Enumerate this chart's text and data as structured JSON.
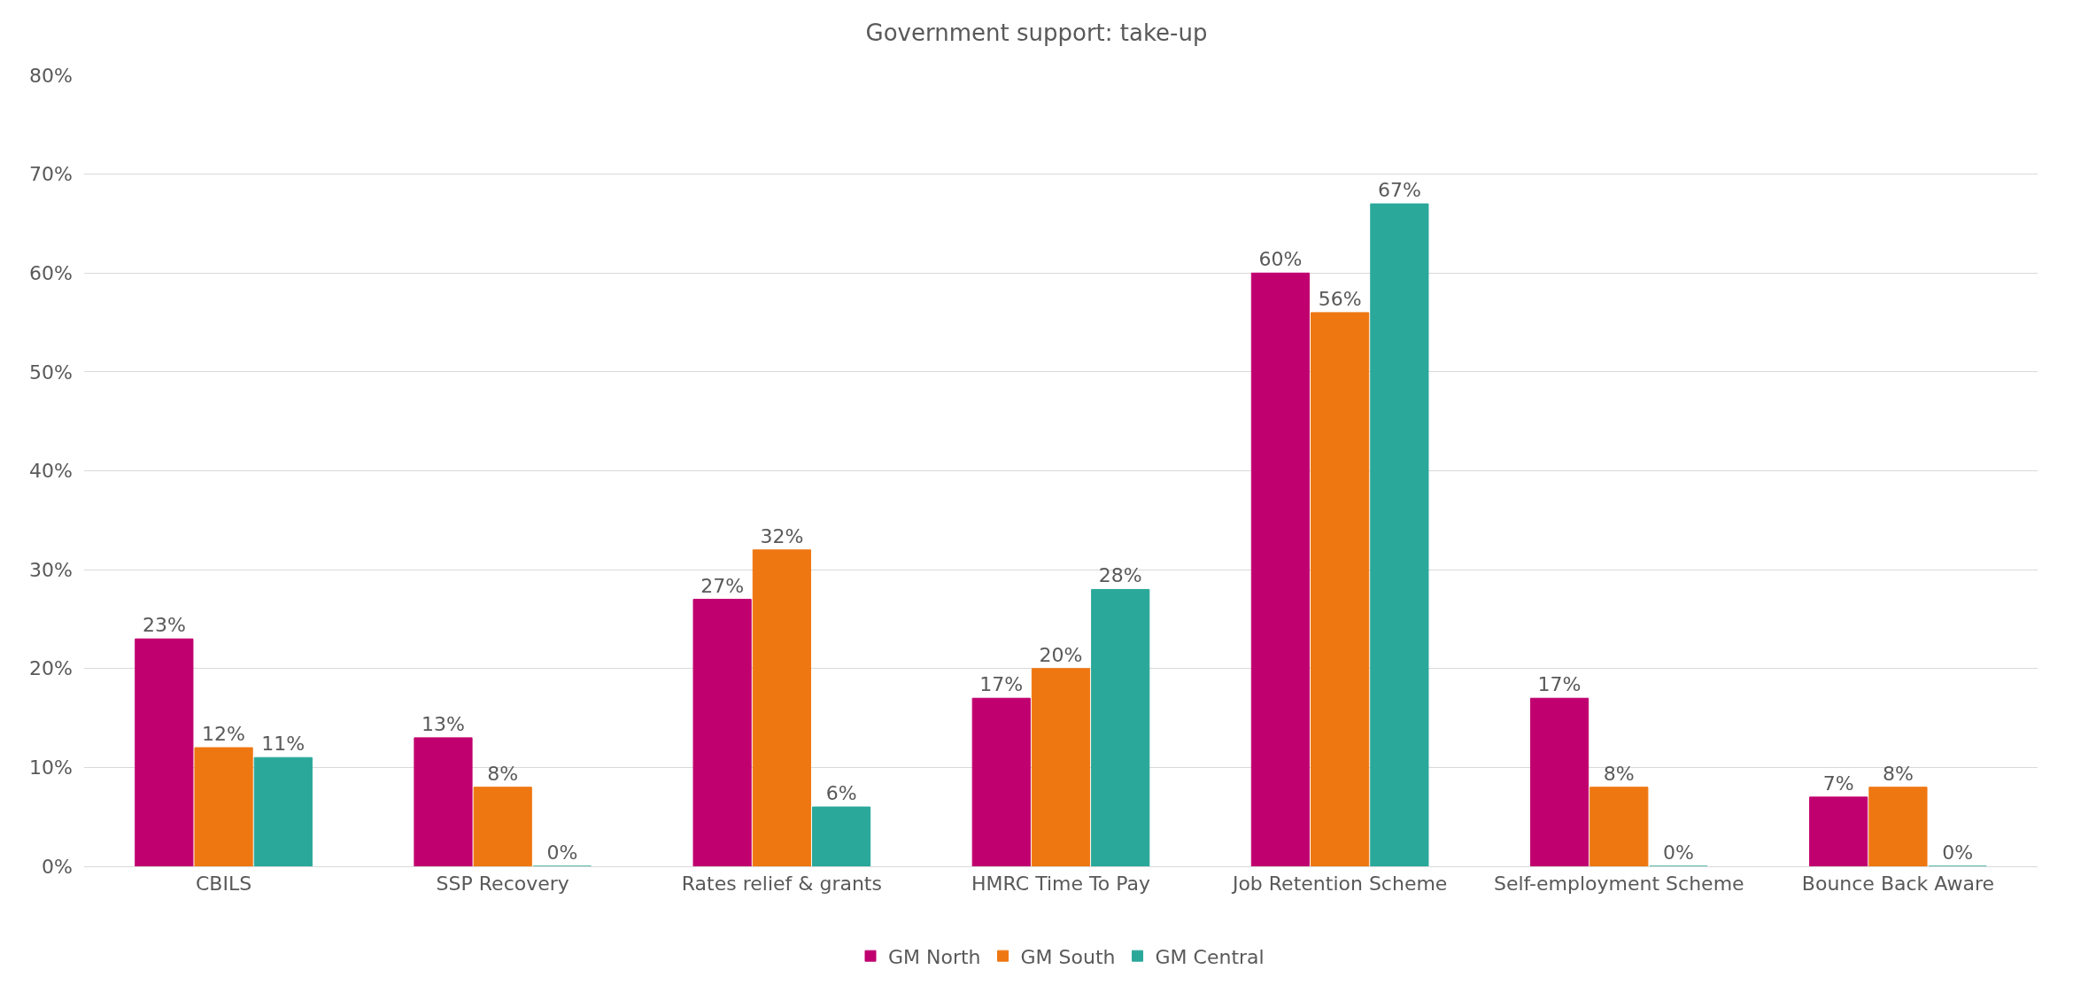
{
  "chart_data": {
    "type": "bar",
    "title": "Government support: take-up",
    "categories": [
      "CBILS",
      "SSP Recovery",
      "Rates relief & grants",
      "HMRC Time To Pay",
      "Job Retention Scheme",
      "Self-employment Scheme",
      "Bounce Back Aware"
    ],
    "series": [
      {
        "name": "GM North",
        "color": "#c0006f",
        "values": [
          23,
          13,
          27,
          17,
          60,
          17,
          7
        ],
        "value_labels": [
          "23%",
          "13%",
          "27%",
          "17%",
          "60%",
          "17%",
          "7%"
        ]
      },
      {
        "name": "GM South",
        "color": "#ef7711",
        "values": [
          12,
          8,
          32,
          20,
          56,
          8,
          8
        ],
        "value_labels": [
          "12%",
          "8%",
          "32%",
          "20%",
          "56%",
          "8%",
          "8%"
        ]
      },
      {
        "name": "GM Central",
        "color": "#2aa89a",
        "values": [
          11,
          0,
          6,
          28,
          67,
          0,
          0
        ],
        "value_labels": [
          "11%",
          "0%",
          "6%",
          "28%",
          "67%",
          "0%",
          "0%"
        ]
      }
    ],
    "ylim": [
      0,
      80
    ],
    "yticks": [
      {
        "value": 0,
        "label": "0%"
      },
      {
        "value": 10,
        "label": "10%"
      },
      {
        "value": 20,
        "label": "20%"
      },
      {
        "value": 30,
        "label": "30%"
      },
      {
        "value": 40,
        "label": "40%"
      },
      {
        "value": 50,
        "label": "50%"
      },
      {
        "value": 60,
        "label": "60%"
      },
      {
        "value": 70,
        "label": "70%"
      },
      {
        "value": 80,
        "label": "80%"
      }
    ],
    "grid": "y",
    "legend": "bottom"
  }
}
